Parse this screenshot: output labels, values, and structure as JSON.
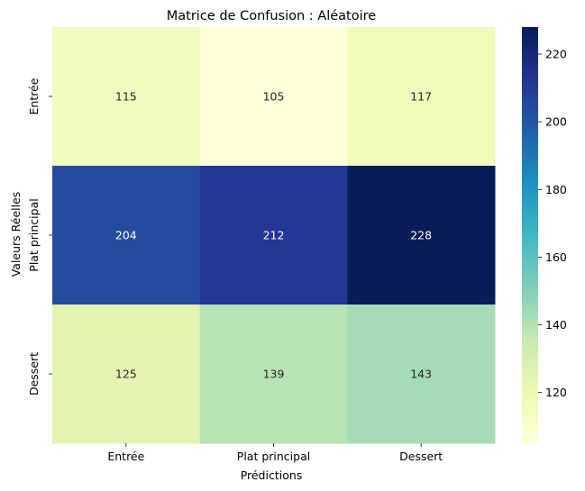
{
  "chart_data": {
    "type": "heatmap",
    "title": "Matrice de Confusion : Aléatoire",
    "xlabel": "Prédictions",
    "ylabel": "Valeurs Réelles",
    "x_categories": [
      "Entrée",
      "Plat principal",
      "Dessert"
    ],
    "y_categories": [
      "Entrée",
      "Plat principal",
      "Dessert"
    ],
    "values": [
      [
        115,
        105,
        117
      ],
      [
        204,
        212,
        228
      ],
      [
        125,
        139,
        143
      ]
    ],
    "colormap": "YlGnBu",
    "vmin": 105,
    "vmax": 228,
    "colorbar_ticks": [
      120,
      140,
      160,
      180,
      200,
      220
    ],
    "colorbar_tick_labels": [
      "120",
      "140",
      "160",
      "180",
      "200",
      "220"
    ]
  }
}
